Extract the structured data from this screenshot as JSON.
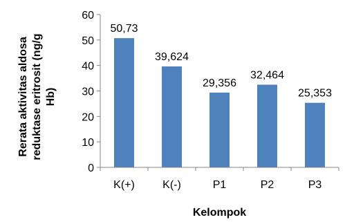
{
  "chart_data": {
    "type": "bar",
    "categories": [
      "K(+)",
      "K(-)",
      "P1",
      "P2",
      "P3"
    ],
    "values": [
      50.73,
      39.624,
      29.356,
      32.464,
      25.353
    ],
    "data_labels": [
      "50,73",
      "39,624",
      "29,356",
      "32,464",
      "25,353"
    ],
    "title": "",
    "xlabel": "Kelompok",
    "ylabel_lines": [
      "Rerata aktivitas aldosa",
      "reduktase eritrosit (ng/g",
      "Hb)"
    ],
    "ylim": [
      0,
      60
    ],
    "yticks": [
      0,
      10,
      20,
      30,
      40,
      50,
      60
    ],
    "grid": false,
    "legend": "none",
    "bar_color": "#4f81bd"
  }
}
